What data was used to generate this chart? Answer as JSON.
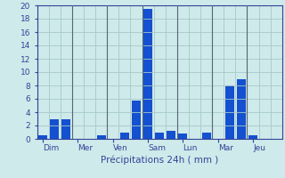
{
  "xlabel": "Précipitations 24h ( mm )",
  "background_color": "#ceeaea",
  "bar_color": "#1450d0",
  "ylim": [
    0,
    20
  ],
  "yticks": [
    0,
    2,
    4,
    6,
    8,
    10,
    12,
    14,
    16,
    18,
    20
  ],
  "day_labels": [
    "Dim",
    "Mer",
    "Ven",
    "Sam",
    "Lun",
    "Mar",
    "Jeu"
  ],
  "n_bars": 21,
  "bars_per_day": 3,
  "bar_values": [
    0.5,
    3.0,
    3.0,
    0.0,
    0.0,
    0.5,
    0.0,
    1.0,
    5.8,
    19.5,
    1.0,
    1.2,
    0.8,
    0.0,
    1.0,
    0.0,
    8.0,
    9.0,
    0.5,
    0.0,
    0.0
  ],
  "grid_color": "#a8c8c8",
  "axis_color": "#334499",
  "tick_color": "#334499",
  "sep_color": "#556677",
  "tick_fontsize": 6.5,
  "xlabel_fontsize": 7.5
}
